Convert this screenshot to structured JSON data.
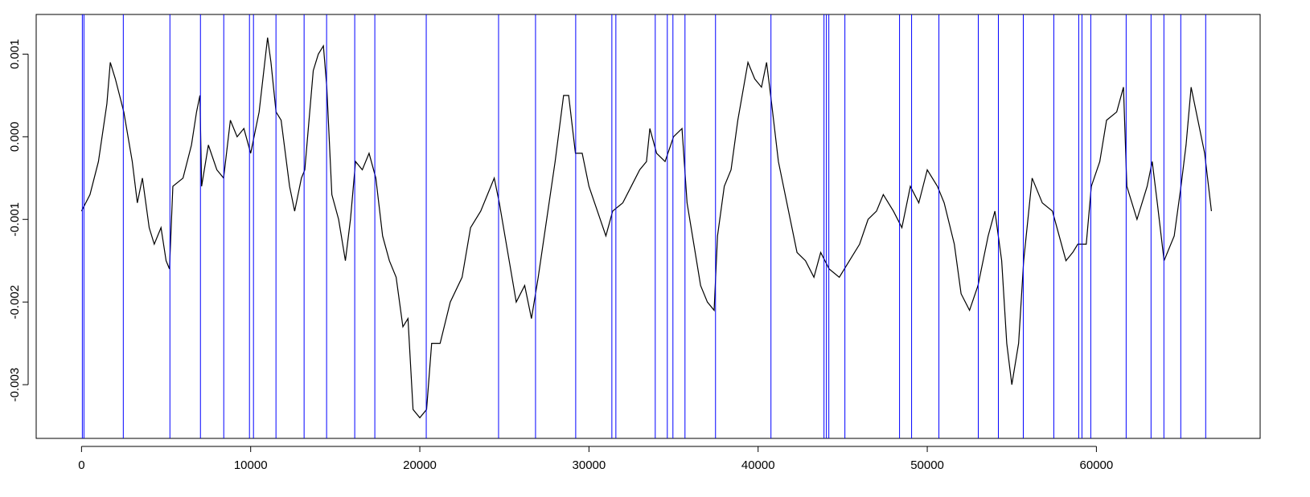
{
  "chart_data": {
    "type": "line",
    "x": [
      0,
      500,
      1000,
      1500,
      1700,
      2000,
      2500,
      3000,
      3300,
      3600,
      4000,
      4300,
      4700,
      5000,
      5200,
      5400,
      6000,
      6500,
      6800,
      7000,
      7100,
      7500,
      8000,
      8400,
      8800,
      9200,
      9600,
      10000,
      10500,
      11000,
      11200,
      11500,
      11800,
      12300,
      12600,
      13000,
      13200,
      13700,
      14000,
      14300,
      14500,
      14800,
      15200,
      15600,
      15900,
      16200,
      16600,
      17000,
      17400,
      17800,
      18200,
      18600,
      19000,
      19300,
      19600,
      20000,
      20400,
      20700,
      21200,
      21800,
      22500,
      23000,
      23600,
      24000,
      24400,
      24700,
      25200,
      25700,
      26200,
      26600,
      27000,
      27500,
      28000,
      28500,
      28800,
      29200,
      29600,
      30000,
      30500,
      31000,
      31400,
      32000,
      32500,
      33000,
      33400,
      33600,
      34000,
      34500,
      35000,
      35500,
      35800,
      36200,
      36600,
      37000,
      37400,
      37600,
      38000,
      38400,
      38800,
      39400,
      39800,
      40200,
      40500,
      40800,
      41200,
      41800,
      42300,
      42800,
      43300,
      43700,
      44200,
      44800,
      45400,
      46000,
      46500,
      47000,
      47400,
      48000,
      48500,
      49000,
      49500,
      50000,
      50600,
      51000,
      51600,
      52000,
      52500,
      53000,
      53600,
      54000,
      54400,
      54700,
      55000,
      55400,
      55700,
      56200,
      56800,
      57400,
      57800,
      58200,
      58600,
      58900,
      59400,
      59700,
      60200,
      60600,
      61200,
      61600,
      61800,
      62400,
      63000,
      63300,
      63600,
      64000,
      64600,
      65000,
      65300,
      65600,
      66000,
      66400,
      66800
    ],
    "values": [
      -0.0009,
      -0.0007,
      -0.0003,
      0.0004,
      0.0009,
      0.0007,
      0.0003,
      -0.0003,
      -0.0008,
      -0.0005,
      -0.0011,
      -0.0013,
      -0.0011,
      -0.0015,
      -0.0016,
      -0.0006,
      -0.0005,
      -0.0001,
      0.0003,
      0.0005,
      -0.0006,
      -0.0001,
      -0.0004,
      -0.0005,
      0.0002,
      0.0,
      0.0001,
      -0.0002,
      0.0003,
      0.0012,
      0.0009,
      0.0003,
      0.0002,
      -0.0006,
      -0.0009,
      -0.0005,
      -0.0004,
      0.0008,
      0.001,
      0.0011,
      0.0006,
      -0.0007,
      -0.001,
      -0.0015,
      -0.001,
      -0.0003,
      -0.0004,
      -0.0002,
      -0.0005,
      -0.0012,
      -0.0015,
      -0.0017,
      -0.0023,
      -0.0022,
      -0.0033,
      -0.0034,
      -0.0033,
      -0.0025,
      -0.0025,
      -0.002,
      -0.0017,
      -0.0011,
      -0.0009,
      -0.0007,
      -0.0005,
      -0.0008,
      -0.0014,
      -0.002,
      -0.0018,
      -0.0022,
      -0.0017,
      -0.001,
      -0.0003,
      0.0005,
      0.0005,
      -0.0002,
      -0.0002,
      -0.0006,
      -0.0009,
      -0.0012,
      -0.0009,
      -0.0008,
      -0.0006,
      -0.0004,
      -0.0003,
      0.0001,
      -0.0002,
      -0.0003,
      0.0,
      0.0001,
      -0.0008,
      -0.0013,
      -0.0018,
      -0.002,
      -0.0021,
      -0.0012,
      -0.0006,
      -0.0004,
      0.0002,
      0.0009,
      0.0007,
      0.0006,
      0.0009,
      0.0004,
      -0.0003,
      -0.0009,
      -0.0014,
      -0.0015,
      -0.0017,
      -0.0014,
      -0.0016,
      -0.0017,
      -0.0015,
      -0.0013,
      -0.001,
      -0.0009,
      -0.0007,
      -0.0009,
      -0.0011,
      -0.0006,
      -0.0008,
      -0.0004,
      -0.0006,
      -0.0008,
      -0.0013,
      -0.0019,
      -0.0021,
      -0.0018,
      -0.0012,
      -0.0009,
      -0.0015,
      -0.0025,
      -0.003,
      -0.0025,
      -0.0015,
      -0.0005,
      -0.0008,
      -0.0009,
      -0.0012,
      -0.0015,
      -0.0014,
      -0.0013,
      -0.0013,
      -0.0006,
      -0.0003,
      0.0002,
      0.0003,
      0.0006,
      -0.0006,
      -0.001,
      -0.0006,
      -0.0003,
      -0.0008,
      -0.0015,
      -0.0012,
      -0.0006,
      -0.0001,
      0.0006,
      0.0002,
      -0.0002,
      -0.0009
    ],
    "color": "#000000",
    "vlines": {
      "color": "#0000ff",
      "values": [
        48,
        143,
        2470,
        5226,
        7031,
        8409,
        9929,
        10166,
        11496,
        13159,
        14489,
        16152,
        17340,
        20380,
        24656,
        26841,
        29216,
        31354,
        31591,
        33919,
        34632,
        34964,
        35677,
        37482,
        40760,
        43895,
        44038,
        44181,
        45131,
        48361,
        49074,
        50689,
        53017,
        54204,
        55677,
        57482,
        58955,
        59145,
        59667,
        61758,
        63230,
        63990,
        64988,
        66461
      ]
    },
    "xlim": [
      -2680,
      69680
    ],
    "xticks": [
      0,
      10000,
      20000,
      30000,
      40000,
      50000,
      60000
    ],
    "ylim": [
      -0.00365,
      0.00148
    ],
    "yticks": [
      -0.003,
      -0.002,
      -0.001,
      {
        "value": 0,
        "label": "0.000"
      },
      0.001
    ]
  }
}
